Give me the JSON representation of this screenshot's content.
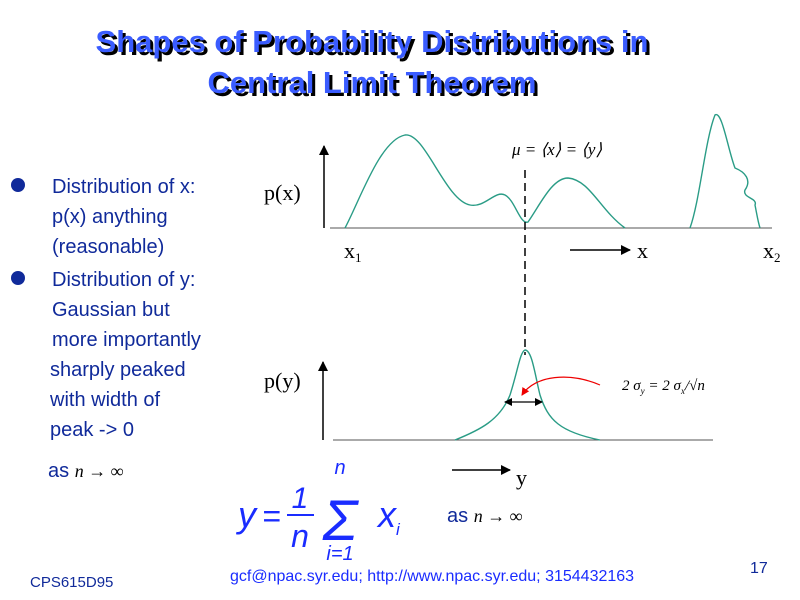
{
  "title": {
    "line1": "Shapes of Probability Distributions in",
    "line2": "Central Limit Theorem"
  },
  "bullets": [
    {
      "lines": [
        "Distribution of x:",
        "p(x) anything",
        "(reasonable)"
      ]
    },
    {
      "lines": [
        "Distribution of y:",
        "Gaussian but",
        "more importantly",
        "sharply peaked",
        "with width of",
        "peak -> 0"
      ]
    }
  ],
  "limit_note": {
    "prefix": "as",
    "expr": "n → ∞"
  },
  "diagram": {
    "px_label": "p(x)",
    "x1": {
      "text": "x",
      "sub": "1"
    },
    "x_axis": "x",
    "x2": {
      "text": "x",
      "sub": "2"
    },
    "mean": "μ = ⟨x⟩ = ⟨y⟩",
    "py_label": "p(y)",
    "width": {
      "lhs": "2 σ",
      "lhs_sub": "y",
      "mid": " = 2 σ",
      "mid_sub": "x",
      "rhs": "/√n"
    },
    "y_axis": "y"
  },
  "formula": {
    "y": "y",
    "eq": "=",
    "num": "1",
    "den": "n",
    "sum": "Σ",
    "upper": "n",
    "lower": "i=1",
    "x": "x",
    "x_sub": "i",
    "note_prefix": "as",
    "note_expr": "n → ∞"
  },
  "footer": {
    "left": "CPS615D95",
    "center": "gcf@npac.syr.edu; http://www.npac.syr.edu; 3154432163",
    "page": "17"
  }
}
